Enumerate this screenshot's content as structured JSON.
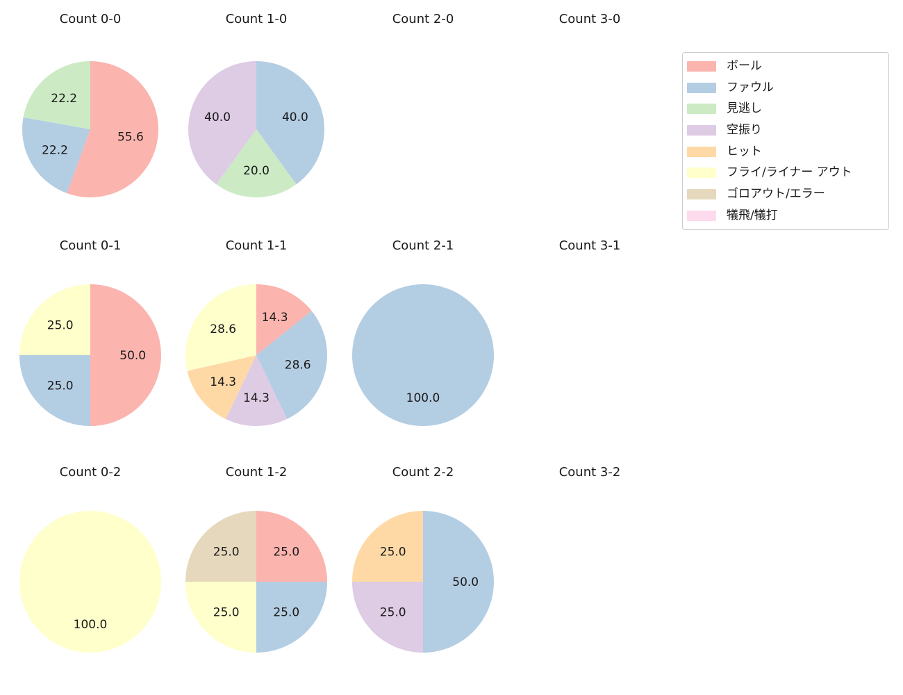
{
  "figure": {
    "background": "#ffffff",
    "text_color": "#1a1a1a"
  },
  "legend": {
    "border_color": "#cccccc",
    "position": "top-right",
    "items": [
      {
        "label": "ボール",
        "color": "#fbb4ae"
      },
      {
        "label": "ファウル",
        "color": "#b3cde3"
      },
      {
        "label": "見逃し",
        "color": "#ccebc5"
      },
      {
        "label": "空振り",
        "color": "#decbe4"
      },
      {
        "label": "ヒット",
        "color": "#fed9a6"
      },
      {
        "label": "フライ/ライナー アウト",
        "color": "#ffffcc"
      },
      {
        "label": "ゴロアウト/エラー",
        "color": "#e5d8bd"
      },
      {
        "label": "犠飛/犠打",
        "color": "#fddaec"
      }
    ]
  },
  "chart_data": {
    "type": "pie",
    "layout_note": "3 rows x 4 columns of pies; wedges start at 12 o'clock and run clockwise; percent labels at 0.6 of radius; empty cells show title only",
    "charts": [
      {
        "title": "Count 0-0",
        "slices": [
          {
            "category": "ボール",
            "value": 55.6,
            "label": "55.6"
          },
          {
            "category": "ファウル",
            "value": 22.2,
            "label": "22.2"
          },
          {
            "category": "見逃し",
            "value": 22.2,
            "label": "22.2"
          }
        ]
      },
      {
        "title": "Count 1-0",
        "slices": [
          {
            "category": "ファウル",
            "value": 40.0,
            "label": "40.0"
          },
          {
            "category": "見逃し",
            "value": 20.0,
            "label": "20.0"
          },
          {
            "category": "空振り",
            "value": 40.0,
            "label": "40.0"
          }
        ]
      },
      {
        "title": "Count 2-0",
        "slices": []
      },
      {
        "title": "Count 3-0",
        "slices": []
      },
      {
        "title": "Count 0-1",
        "slices": [
          {
            "category": "ボール",
            "value": 50.0,
            "label": "50.0"
          },
          {
            "category": "ファウル",
            "value": 25.0,
            "label": "25.0"
          },
          {
            "category": "フライ/ライナー アウト",
            "value": 25.0,
            "label": "25.0"
          }
        ]
      },
      {
        "title": "Count 1-1",
        "slices": [
          {
            "category": "ボール",
            "value": 14.3,
            "label": "14.3"
          },
          {
            "category": "ファウル",
            "value": 28.6,
            "label": "28.6"
          },
          {
            "category": "空振り",
            "value": 14.3,
            "label": "14.3"
          },
          {
            "category": "ヒット",
            "value": 14.3,
            "label": "14.3"
          },
          {
            "category": "フライ/ライナー アウト",
            "value": 28.6,
            "label": "28.6"
          }
        ]
      },
      {
        "title": "Count 2-1",
        "slices": [
          {
            "category": "ファウル",
            "value": 100.0,
            "label": "100.0"
          }
        ]
      },
      {
        "title": "Count 3-1",
        "slices": []
      },
      {
        "title": "Count 0-2",
        "slices": [
          {
            "category": "フライ/ライナー アウト",
            "value": 100.0,
            "label": "100.0"
          }
        ]
      },
      {
        "title": "Count 1-2",
        "slices": [
          {
            "category": "ボール",
            "value": 25.0,
            "label": "25.0"
          },
          {
            "category": "ファウル",
            "value": 25.0,
            "label": "25.0"
          },
          {
            "category": "フライ/ライナー アウト",
            "value": 25.0,
            "label": "25.0"
          },
          {
            "category": "ゴロアウト/エラー",
            "value": 25.0,
            "label": "25.0"
          }
        ]
      },
      {
        "title": "Count 2-2",
        "slices": [
          {
            "category": "ファウル",
            "value": 50.0,
            "label": "50.0"
          },
          {
            "category": "空振り",
            "value": 25.0,
            "label": "25.0"
          },
          {
            "category": "ヒット",
            "value": 25.0,
            "label": "25.0"
          }
        ]
      },
      {
        "title": "Count 3-2",
        "slices": []
      }
    ]
  }
}
